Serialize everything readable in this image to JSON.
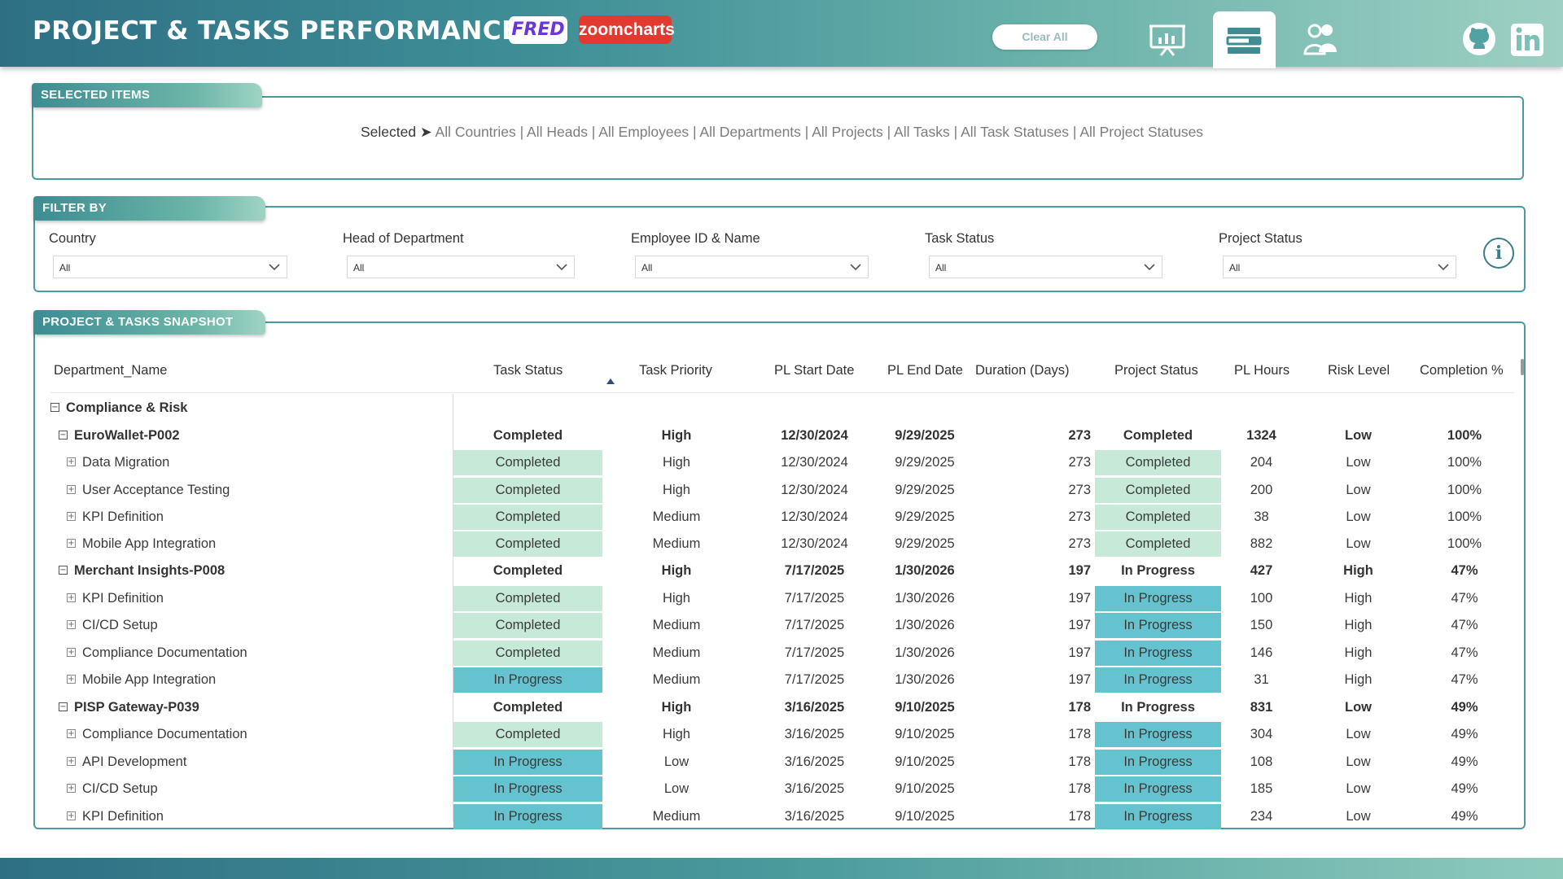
{
  "header": {
    "title": "PROJECT & TASKS PERFORMANCE",
    "logo_fred": "FRED",
    "logo_zoom": "zoomcharts",
    "clear_all": "Clear All",
    "nav_icons": [
      "presentation-icon",
      "table-view-icon",
      "people-icon",
      "github-icon",
      "linkedin-icon"
    ]
  },
  "selected_panel": {
    "tab": "SELECTED ITEMS",
    "prefix": "Selected ➤ ",
    "items": "All Countries | All Heads | All Employees | All Departments | All Projects | All Tasks | All Task Statuses | All Project Statuses"
  },
  "filter_panel": {
    "tab": "FILTER BY",
    "filters": [
      {
        "label": "Country",
        "value": "All"
      },
      {
        "label": "Head of Department",
        "value": "All"
      },
      {
        "label": "Employee ID & Name",
        "value": "All"
      },
      {
        "label": "Task Status",
        "value": "All"
      },
      {
        "label": "Project Status",
        "value": "All"
      }
    ],
    "info": "i"
  },
  "snapshot_panel": {
    "tab": "PROJECT & TASKS SNAPSHOT",
    "columns": [
      "Department_Name",
      "Task Status",
      "Task Priority",
      "PL Start Date",
      "PL End Date",
      "Duration (Days)",
      "Project Status",
      "PL Hours",
      "Risk Level",
      "Completion %"
    ],
    "rows": [
      {
        "level": 0,
        "name": "Compliance & Risk",
        "expander": "−"
      },
      {
        "level": 1,
        "name": "EuroWallet-P002",
        "expander": "−",
        "task_status": "Completed",
        "priority": "High",
        "start": "12/30/2024",
        "end": "9/29/2025",
        "duration": "273",
        "project_status": "Completed",
        "hours": "1324",
        "risk": "Low",
        "completion": "100%"
      },
      {
        "level": 2,
        "name": "Data Migration",
        "expander": "+",
        "task_status": "Completed",
        "priority": "High",
        "start": "12/30/2024",
        "end": "9/29/2025",
        "duration": "273",
        "project_status": "Completed",
        "hours": "204",
        "risk": "Low",
        "completion": "100%"
      },
      {
        "level": 2,
        "name": "User Acceptance Testing",
        "expander": "+",
        "task_status": "Completed",
        "priority": "High",
        "start": "12/30/2024",
        "end": "9/29/2025",
        "duration": "273",
        "project_status": "Completed",
        "hours": "200",
        "risk": "Low",
        "completion": "100%"
      },
      {
        "level": 2,
        "name": "KPI Definition",
        "expander": "+",
        "task_status": "Completed",
        "priority": "Medium",
        "start": "12/30/2024",
        "end": "9/29/2025",
        "duration": "273",
        "project_status": "Completed",
        "hours": "38",
        "risk": "Low",
        "completion": "100%"
      },
      {
        "level": 2,
        "name": "Mobile App Integration",
        "expander": "+",
        "task_status": "Completed",
        "priority": "Medium",
        "start": "12/30/2024",
        "end": "9/29/2025",
        "duration": "273",
        "project_status": "Completed",
        "hours": "882",
        "risk": "Low",
        "completion": "100%"
      },
      {
        "level": 1,
        "name": "Merchant Insights-P008",
        "expander": "−",
        "task_status": "Completed",
        "priority": "High",
        "start": "7/17/2025",
        "end": "1/30/2026",
        "duration": "197",
        "project_status": "In Progress",
        "hours": "427",
        "risk": "High",
        "completion": "47%"
      },
      {
        "level": 2,
        "name": "KPI Definition",
        "expander": "+",
        "task_status": "Completed",
        "priority": "High",
        "start": "7/17/2025",
        "end": "1/30/2026",
        "duration": "197",
        "project_status": "In Progress",
        "hours": "100",
        "risk": "High",
        "completion": "47%"
      },
      {
        "level": 2,
        "name": "CI/CD Setup",
        "expander": "+",
        "task_status": "Completed",
        "priority": "Medium",
        "start": "7/17/2025",
        "end": "1/30/2026",
        "duration": "197",
        "project_status": "In Progress",
        "hours": "150",
        "risk": "High",
        "completion": "47%"
      },
      {
        "level": 2,
        "name": "Compliance Documentation",
        "expander": "+",
        "task_status": "Completed",
        "priority": "Medium",
        "start": "7/17/2025",
        "end": "1/30/2026",
        "duration": "197",
        "project_status": "In Progress",
        "hours": "146",
        "risk": "High",
        "completion": "47%"
      },
      {
        "level": 2,
        "name": "Mobile App Integration",
        "expander": "+",
        "task_status": "In Progress",
        "priority": "Medium",
        "start": "7/17/2025",
        "end": "1/30/2026",
        "duration": "197",
        "project_status": "In Progress",
        "hours": "31",
        "risk": "High",
        "completion": "47%"
      },
      {
        "level": 1,
        "name": "PISP Gateway-P039",
        "expander": "−",
        "task_status": "Completed",
        "priority": "High",
        "start": "3/16/2025",
        "end": "9/10/2025",
        "duration": "178",
        "project_status": "In Progress",
        "hours": "831",
        "risk": "Low",
        "completion": "49%"
      },
      {
        "level": 2,
        "name": "Compliance Documentation",
        "expander": "+",
        "task_status": "Completed",
        "priority": "High",
        "start": "3/16/2025",
        "end": "9/10/2025",
        "duration": "178",
        "project_status": "In Progress",
        "hours": "304",
        "risk": "Low",
        "completion": "49%"
      },
      {
        "level": 2,
        "name": "API Development",
        "expander": "+",
        "task_status": "In Progress",
        "priority": "Low",
        "start": "3/16/2025",
        "end": "9/10/2025",
        "duration": "178",
        "project_status": "In Progress",
        "hours": "108",
        "risk": "Low",
        "completion": "49%"
      },
      {
        "level": 2,
        "name": "CI/CD Setup",
        "expander": "+",
        "task_status": "In Progress",
        "priority": "Low",
        "start": "3/16/2025",
        "end": "9/10/2025",
        "duration": "178",
        "project_status": "In Progress",
        "hours": "185",
        "risk": "Low",
        "completion": "49%"
      },
      {
        "level": 2,
        "name": "KPI Definition",
        "expander": "+",
        "task_status": "In Progress",
        "priority": "Medium",
        "start": "3/16/2025",
        "end": "9/10/2025",
        "duration": "178",
        "project_status": "In Progress",
        "hours": "234",
        "risk": "Low",
        "completion": "49%"
      }
    ]
  },
  "colors": {
    "accent": "#4a9aa2",
    "completed_bg": "#c6e9d8",
    "in_progress_bg": "#65c3cf"
  }
}
